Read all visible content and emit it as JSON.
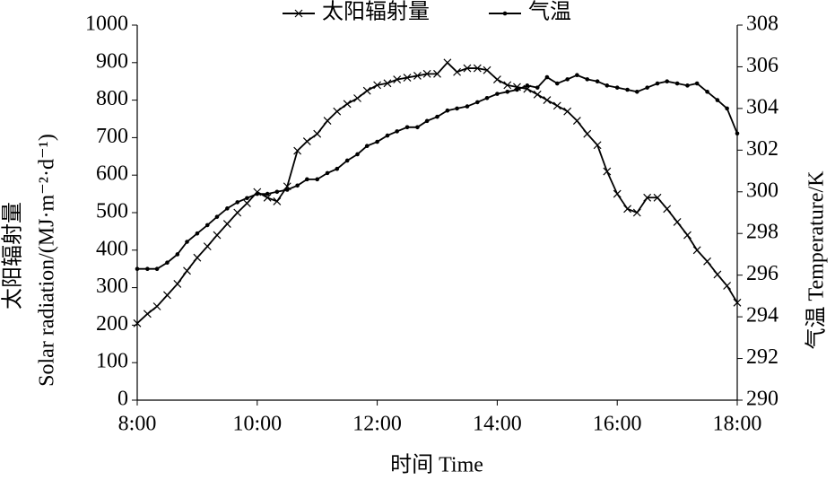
{
  "chart_data": {
    "type": "line",
    "x_label": "时间 Time",
    "y_label": [
      "太阳辐射量",
      "Solar radiation/(MJ·m⁻²·d⁻¹)"
    ],
    "y2_label": "气温  Temperature/K",
    "x": [
      8,
      8.17,
      8.33,
      8.5,
      8.67,
      8.83,
      9,
      9.17,
      9.33,
      9.5,
      9.67,
      9.83,
      10,
      10.17,
      10.33,
      10.5,
      10.67,
      10.83,
      11,
      11.17,
      11.33,
      11.5,
      11.67,
      11.83,
      12,
      12.17,
      12.33,
      12.5,
      12.67,
      12.83,
      13,
      13.17,
      13.33,
      13.5,
      13.67,
      13.83,
      14,
      14.17,
      14.33,
      14.5,
      14.67,
      14.83,
      15,
      15.17,
      15.33,
      15.5,
      15.67,
      15.83,
      16,
      16.17,
      16.33,
      16.5,
      16.67,
      16.83,
      17,
      17.17,
      17.33,
      17.5,
      17.67,
      17.83,
      18
    ],
    "series": [
      {
        "name": "太阳辐射量",
        "color": "#000000",
        "marker": "x",
        "axis": "y",
        "values": [
          205,
          230,
          250,
          280,
          310,
          345,
          380,
          410,
          440,
          470,
          500,
          525,
          555,
          540,
          530,
          570,
          665,
          690,
          710,
          745,
          770,
          790,
          805,
          825,
          840,
          845,
          855,
          860,
          865,
          870,
          870,
          900,
          875,
          885,
          885,
          880,
          855,
          840,
          835,
          830,
          815,
          800,
          785,
          770,
          745,
          710,
          680,
          610,
          550,
          510,
          500,
          540,
          540,
          510,
          475,
          440,
          400,
          370,
          335,
          305,
          260
        ]
      },
      {
        "name": "气温",
        "color": "#000000",
        "marker": "dot",
        "axis": "y2",
        "values": [
          296.3,
          296.3,
          296.3,
          296.6,
          297,
          297.6,
          298,
          298.4,
          298.8,
          299.2,
          299.5,
          299.7,
          299.9,
          299.9,
          300,
          300.1,
          300.3,
          300.6,
          300.6,
          300.9,
          301.1,
          301.5,
          301.8,
          302.2,
          302.4,
          302.7,
          302.9,
          303.1,
          303.1,
          303.4,
          303.6,
          303.9,
          304,
          304.1,
          304.3,
          304.5,
          304.7,
          304.8,
          304.9,
          305.1,
          305,
          305.5,
          305.2,
          305.4,
          305.6,
          305.4,
          305.3,
          305.1,
          305,
          304.9,
          304.8,
          305,
          305.2,
          305.3,
          305.2,
          305.1,
          305.2,
          304.8,
          304.4,
          304,
          302.8
        ]
      }
    ],
    "xlim": [
      8,
      18
    ],
    "xticks": [
      {
        "value": 8,
        "label": "8:00"
      },
      {
        "value": 10,
        "label": "10:00"
      },
      {
        "value": 12,
        "label": "12:00"
      },
      {
        "value": 14,
        "label": "14:00"
      },
      {
        "value": 16,
        "label": "16:00"
      },
      {
        "value": 18,
        "label": "18:00"
      }
    ],
    "ylim": [
      0,
      1000
    ],
    "yticks": [
      0,
      100,
      200,
      300,
      400,
      500,
      600,
      700,
      800,
      900,
      1000
    ],
    "y2lim": [
      290,
      308
    ],
    "y2ticks": [
      290,
      292,
      294,
      296,
      298,
      300,
      302,
      304,
      306,
      308
    ],
    "grid": false,
    "legend": "top"
  }
}
